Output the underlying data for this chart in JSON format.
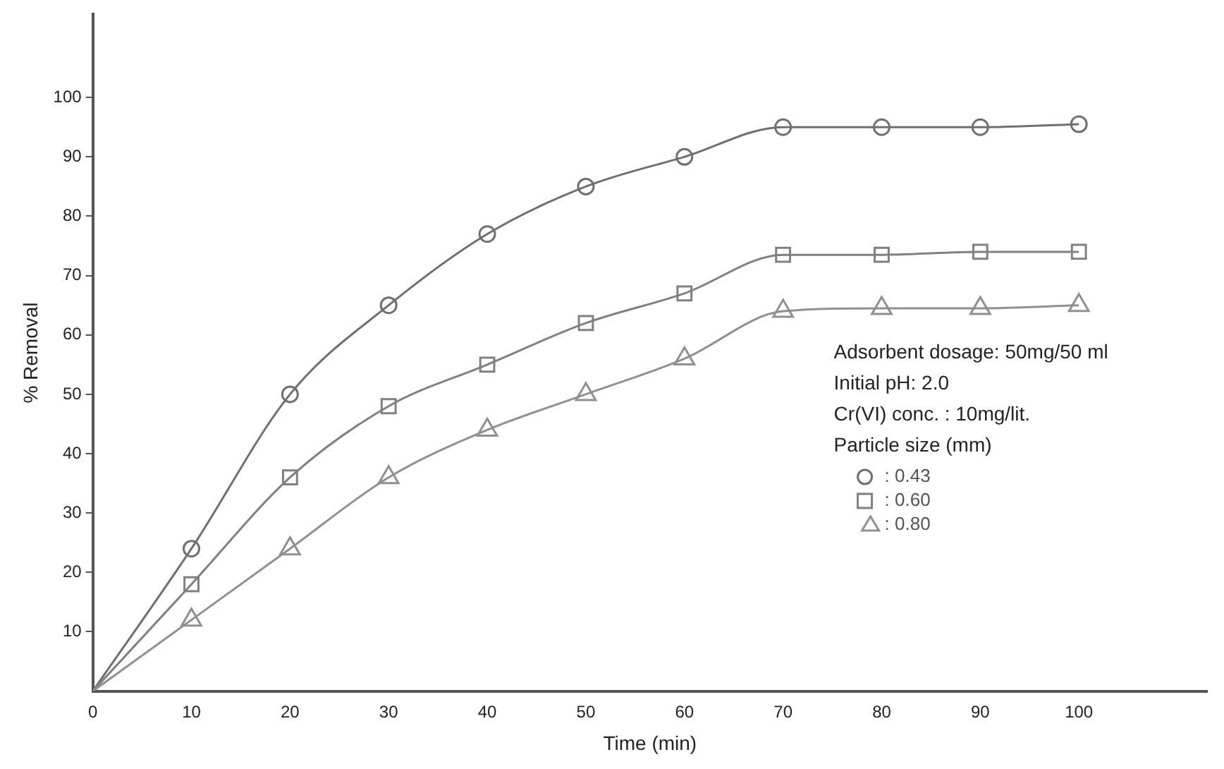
{
  "chart_data": {
    "type": "line",
    "xlabel": "Time (min)",
    "ylabel": "% Removal",
    "x": [
      0,
      10,
      20,
      30,
      40,
      50,
      60,
      70,
      80,
      90,
      100
    ],
    "series": [
      {
        "name": ": 0.43",
        "color": "#707070",
        "marker": "circle",
        "values": [
          0,
          24,
          50,
          65,
          77,
          85,
          90,
          95,
          95,
          95,
          95.5
        ]
      },
      {
        "name": ": 0.60",
        "color": "#808080",
        "marker": "square",
        "values": [
          0,
          18,
          36,
          48,
          55,
          62,
          67,
          73.5,
          73.5,
          74,
          74
        ]
      },
      {
        "name": ": 0.80",
        "color": "#909090",
        "marker": "triangle",
        "values": [
          0,
          12,
          24,
          36,
          44,
          50,
          56,
          64,
          64.5,
          64.5,
          65
        ]
      }
    ],
    "xlim": [
      0,
      113
    ],
    "xticks": [
      0,
      10,
      20,
      30,
      40,
      50,
      60,
      70,
      80,
      90,
      100
    ],
    "ylim": [
      0,
      114
    ],
    "yticks": [
      10,
      20,
      30,
      40,
      50,
      60,
      70,
      80,
      90,
      100
    ],
    "grid": false,
    "legend": "right",
    "legend_title": "Particle size (mm)",
    "line_style": "solid",
    "annotations": [
      "Adsorbent dosage: 50mg/50 ml",
      "Initial pH: 2.0",
      "Cr(VI) conc. : 10mg/lit."
    ]
  }
}
